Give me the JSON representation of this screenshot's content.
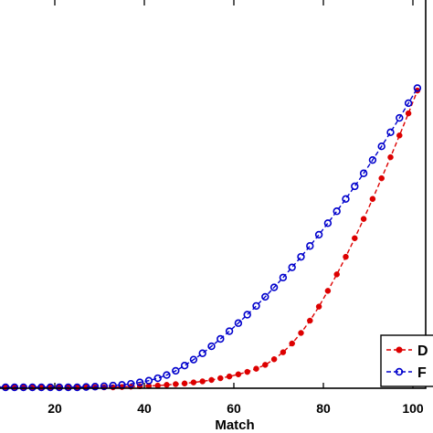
{
  "chart_data": {
    "type": "line",
    "title": "",
    "xlabel": "Match",
    "ylabel": "",
    "xlim": [
      1,
      102
    ],
    "ylim": [
      0,
      1
    ],
    "xticks": [
      20,
      40,
      60,
      80,
      100
    ],
    "xtick_labels": [
      "20",
      "40",
      "60",
      "80",
      "100"
    ],
    "grid": false,
    "legend_position": "bottom-right",
    "series": [
      {
        "name": "D",
        "color": "#dd0000",
        "line_style": "dashed",
        "marker": "filled-dot",
        "x": [
          1,
          3,
          5,
          7,
          9,
          11,
          13,
          15,
          17,
          19,
          21,
          23,
          25,
          27,
          29,
          31,
          33,
          35,
          37,
          39,
          41,
          43,
          45,
          47,
          49,
          51,
          53,
          55,
          57,
          59,
          61,
          63,
          65,
          67,
          69,
          71,
          73,
          75,
          77,
          79,
          81,
          83,
          85,
          87,
          89,
          91,
          93,
          95,
          97,
          99,
          101
        ],
        "y": [
          0,
          0,
          0,
          0,
          0,
          0,
          0,
          0,
          0,
          0,
          0,
          0,
          0,
          0,
          0,
          0,
          0,
          0.001,
          0.002,
          0.003,
          0.004,
          0.005,
          0.007,
          0.009,
          0.011,
          0.014,
          0.017,
          0.021,
          0.026,
          0.031,
          0.037,
          0.044,
          0.053,
          0.064,
          0.08,
          0.1,
          0.125,
          0.155,
          0.19,
          0.23,
          0.275,
          0.322,
          0.372,
          0.425,
          0.48,
          0.537,
          0.596,
          0.656,
          0.718,
          0.781,
          0.846
        ]
      },
      {
        "name": "F",
        "color": "#0000cc",
        "line_style": "dashed",
        "marker": "open-circle",
        "x": [
          1,
          3,
          5,
          7,
          9,
          11,
          13,
          15,
          17,
          19,
          21,
          23,
          25,
          27,
          29,
          31,
          33,
          35,
          37,
          39,
          41,
          43,
          45,
          47,
          49,
          51,
          53,
          55,
          57,
          59,
          61,
          63,
          65,
          67,
          69,
          71,
          73,
          75,
          77,
          79,
          81,
          83,
          85,
          87,
          89,
          91,
          93,
          95,
          97,
          99,
          101
        ],
        "y": [
          0,
          0,
          0,
          0,
          0,
          0,
          0,
          0,
          0,
          0,
          0,
          0,
          0,
          0.001,
          0.002,
          0.003,
          0.005,
          0.007,
          0.01,
          0.014,
          0.019,
          0.026,
          0.035,
          0.047,
          0.062,
          0.079,
          0.097,
          0.117,
          0.138,
          0.16,
          0.183,
          0.207,
          0.232,
          0.258,
          0.285,
          0.313,
          0.342,
          0.372,
          0.403,
          0.435,
          0.468,
          0.502,
          0.537,
          0.573,
          0.61,
          0.648,
          0.687,
          0.727,
          0.768,
          0.81,
          0.853
        ]
      }
    ]
  }
}
